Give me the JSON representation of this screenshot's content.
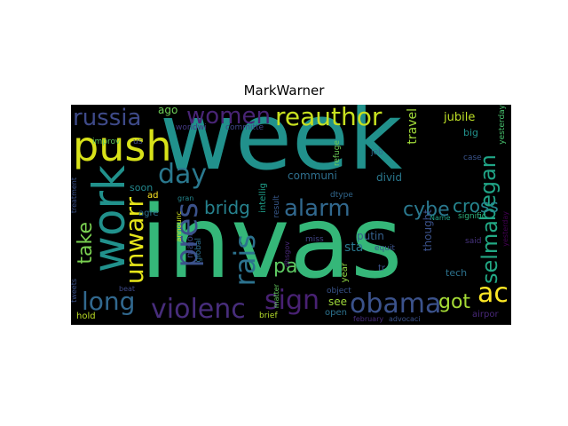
{
  "title": "MarkWarner",
  "palette": {
    "background": "#000000",
    "teal": "#21918c",
    "green": "#35b779",
    "yellow": "#fde725",
    "lime": "#b5de2b",
    "blue": "#3b528b",
    "purple": "#472d7b",
    "dark": "#440154"
  },
  "words": [
    {
      "id": "week",
      "text": "week",
      "color": "#21918c"
    },
    {
      "id": "invas",
      "text": "invas",
      "color": "#35b779"
    },
    {
      "id": "push",
      "text": "push",
      "color": "#d8e219"
    },
    {
      "id": "work",
      "text": "work",
      "color": "#21918c"
    },
    {
      "id": "reauthor",
      "text": "reauthor",
      "color": "#c7e020"
    },
    {
      "id": "russia",
      "text": "russia",
      "color": "#3e4a89"
    },
    {
      "id": "women",
      "text": "women",
      "color": "#482475"
    },
    {
      "id": "day",
      "text": "day",
      "color": "#2a788e"
    },
    {
      "id": "pres",
      "text": "pres",
      "color": "#3b528b"
    },
    {
      "id": "rais",
      "text": "rais",
      "color": "#2c728e"
    },
    {
      "id": "unwarr",
      "text": "unwarr",
      "color": "#e5e419"
    },
    {
      "id": "long",
      "text": "long",
      "color": "#31688e"
    },
    {
      "id": "violenc",
      "text": "violenc",
      "color": "#472d7b"
    },
    {
      "id": "sign",
      "text": "sign",
      "color": "#482173"
    },
    {
      "id": "obama",
      "text": "obama",
      "color": "#3b528b"
    },
    {
      "id": "alarm",
      "text": "alarm",
      "color": "#31688e"
    },
    {
      "id": "began",
      "text": "began",
      "color": "#20a486"
    },
    {
      "id": "ac",
      "text": "ac",
      "color": "#fde725"
    },
    {
      "id": "selma",
      "text": "selma",
      "color": "#22a884"
    },
    {
      "id": "cybe",
      "text": "cybe",
      "color": "#2a788e"
    },
    {
      "id": "cross",
      "text": "cross",
      "color": "#25858e"
    },
    {
      "id": "got",
      "text": "got",
      "color": "#a5db36"
    },
    {
      "id": "bridg",
      "text": "bridg",
      "color": "#26828e"
    },
    {
      "id": "take",
      "text": "take",
      "color": "#7ad151"
    },
    {
      "id": "pa",
      "text": "pa",
      "color": "#5ec962"
    },
    {
      "id": "ago",
      "text": "ago",
      "color": "#6ece58"
    },
    {
      "id": "travel",
      "text": "travel",
      "color": "#a0da39"
    },
    {
      "id": "jubile",
      "text": "jubile",
      "color": "#bddf26"
    },
    {
      "id": "yesterday_top",
      "text": "yesterday",
      "color": "#48c16e"
    },
    {
      "id": "worldwi",
      "text": "worldwi",
      "color": "#443983"
    },
    {
      "id": "committe",
      "text": "committe",
      "color": "#3f4788"
    },
    {
      "id": "big",
      "text": "big",
      "color": "#21918c"
    },
    {
      "id": "communi",
      "text": "communi",
      "color": "#2e6f8e"
    },
    {
      "id": "divid",
      "text": "divid",
      "color": "#2a788e"
    },
    {
      "id": "refuge",
      "text": "refuge",
      "color": "#6ece58"
    },
    {
      "id": "job",
      "text": "job",
      "color": "#31688e"
    },
    {
      "id": "case",
      "text": "case",
      "color": "#3a548c"
    },
    {
      "id": "improv",
      "text": "improv",
      "color": "#5ec962"
    },
    {
      "id": "us",
      "text": "us",
      "color": "#3e4a89"
    },
    {
      "id": "soon",
      "text": "soon",
      "color": "#23888e"
    },
    {
      "id": "gran",
      "text": "gran",
      "color": "#24868e"
    },
    {
      "id": "intellig",
      "text": "intellig",
      "color": "#1f9e89"
    },
    {
      "id": "result",
      "text": "result",
      "color": "#38598c"
    },
    {
      "id": "dtype",
      "text": "dtype",
      "color": "#31688e"
    },
    {
      "id": "putin",
      "text": "putin",
      "color": "#35608d"
    },
    {
      "id": "treatment",
      "text": "treatment",
      "color": "#3b528b"
    },
    {
      "id": "ad",
      "text": "ad",
      "color": "#fde725"
    },
    {
      "id": "agre",
      "text": "agre",
      "color": "#2c728e"
    },
    {
      "id": "announc",
      "text": "announc",
      "color": "#d0e11c"
    },
    {
      "id": "major",
      "text": "major",
      "color": "#3e4989"
    },
    {
      "id": "global",
      "text": "global",
      "color": "#2d708e"
    },
    {
      "id": "name",
      "text": "Name",
      "color": "#1fa188"
    },
    {
      "id": "signific",
      "text": "signific",
      "color": "#2db27d"
    },
    {
      "id": "miss",
      "text": "miss",
      "color": "#414487"
    },
    {
      "id": "thought",
      "text": "thought",
      "color": "#3b528b"
    },
    {
      "id": "sta",
      "text": "sta",
      "color": "#2a788e"
    },
    {
      "id": "said",
      "text": "said",
      "color": "#46337e"
    },
    {
      "id": "yesterday_right",
      "text": "yesterday",
      "color": "#440154"
    },
    {
      "id": "equit",
      "text": "equit",
      "color": "#3b528b"
    },
    {
      "id": "dhsgov",
      "text": "dhsgov",
      "color": "#482878"
    },
    {
      "id": "year",
      "text": "year",
      "color": "#8fd744"
    },
    {
      "id": "tr",
      "text": "tr",
      "color": "#3b528b"
    },
    {
      "id": "tech",
      "text": "tech",
      "color": "#2c728e"
    },
    {
      "id": "tweets",
      "text": "tweets",
      "color": "#3b528b"
    },
    {
      "id": "beat",
      "text": "beat",
      "color": "#3e4a89"
    },
    {
      "id": "object",
      "text": "object",
      "color": "#3a548c"
    },
    {
      "id": "matter",
      "text": "matter",
      "color": "#65cb5e"
    },
    {
      "id": "see",
      "text": "see",
      "color": "#9fda3a"
    },
    {
      "id": "brief",
      "text": "brief",
      "color": "#b5de2b"
    },
    {
      "id": "open",
      "text": "open",
      "color": "#2c728e"
    },
    {
      "id": "february",
      "text": "february",
      "color": "#472c7a"
    },
    {
      "id": "advocaci",
      "text": "advocaci",
      "color": "#3b528b"
    },
    {
      "id": "airpor",
      "text": "airpor",
      "color": "#482878"
    },
    {
      "id": "hold",
      "text": "hold",
      "color": "#bddf26"
    }
  ]
}
